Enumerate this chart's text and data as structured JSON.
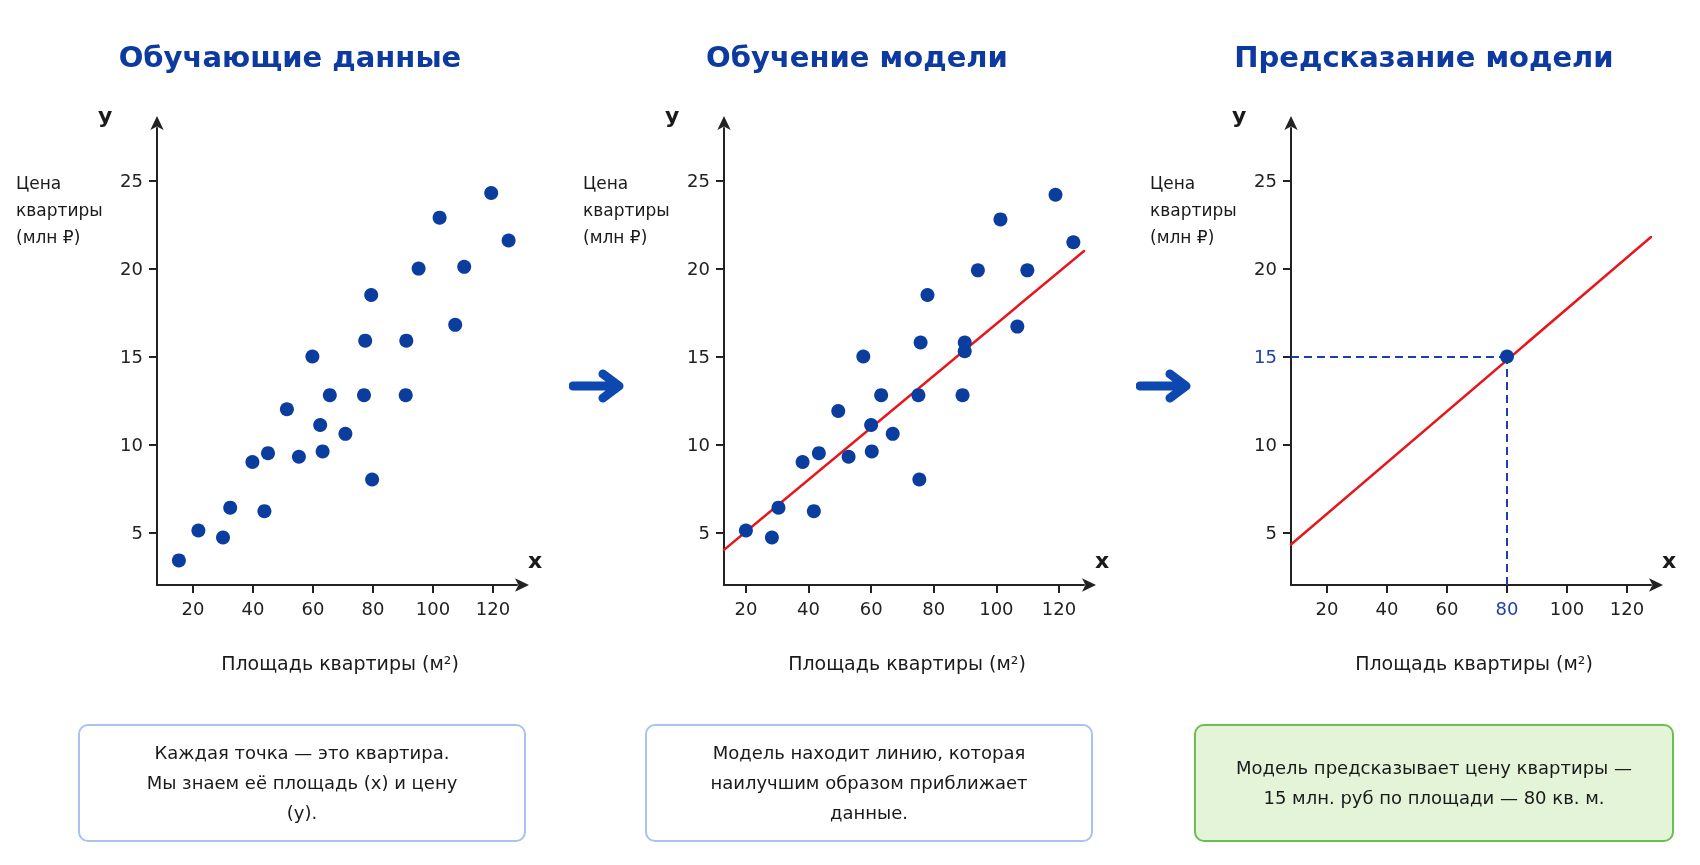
{
  "chart_data": [
    {
      "type": "scatter",
      "title": "Обучающие данные",
      "xlabel": "Площадь квартиры (м²)",
      "ylabel": "Цена квартиры (млн ₽)",
      "annotations": [
        "y",
        "x",
        "Каждая точка — это квартира.\nМы знаем её площадь (x) и цену (y)."
      ],
      "xlim": [
        8,
        128
      ],
      "ylim": [
        2,
        28
      ],
      "xticks": [
        20,
        40,
        60,
        80,
        100,
        120
      ],
      "yticks": [
        5,
        10,
        15,
        20,
        25
      ],
      "grid": false,
      "marker": "circle",
      "series": [
        {
          "color": "#0b3d9e",
          "x": [
            15.3,
            21.8,
            30,
            32.4,
            39.8,
            43.8,
            45,
            51.3,
            55.3,
            59.8,
            62.4,
            63.2,
            65.6,
            70.8,
            77,
            77.4,
            79.4,
            79.7,
            90.9,
            91.1,
            95.2,
            102.2,
            107.4,
            110.4,
            119.4,
            125.2
          ],
          "values": [
            3.4,
            5.1,
            4.7,
            6.4,
            9.0,
            6.2,
            9.5,
            12.0,
            9.3,
            15.0,
            11.1,
            9.6,
            12.8,
            10.6,
            12.8,
            15.9,
            18.5,
            8.0,
            12.8,
            15.9,
            20.0,
            22.9,
            16.8,
            20.1,
            24.3,
            21.6
          ]
        }
      ]
    },
    {
      "type": "scatter",
      "title": "Обучение модели",
      "xlabel": "Площадь квартиры (м²)",
      "ylabel": "Цена квартиры (млн ₽)",
      "annotations": [
        "y",
        "x",
        "Модель находит линию, которая наилучшим образом приближает данные."
      ],
      "xlim": [
        13,
        128
      ],
      "ylim": [
        2,
        28
      ],
      "xticks": [
        20,
        40,
        60,
        80,
        100,
        120
      ],
      "yticks": [
        5,
        10,
        15,
        20,
        25
      ],
      "grid": false,
      "marker": "circle",
      "series": [
        {
          "color": "#0b3d9e",
          "x": [
            20,
            28.3,
            30.4,
            38.1,
            41.7,
            43.3,
            49.5,
            52.8,
            57.5,
            60,
            60.2,
            63.2,
            66.9,
            75.1,
            75.8,
            78,
            75.4,
            89.2,
            89.9,
            89.9,
            94.1,
            101.3,
            106.7,
            109.9,
            118.9,
            124.6
          ],
          "values": [
            5.1,
            4.7,
            6.4,
            9.0,
            6.2,
            9.5,
            11.9,
            9.3,
            15.0,
            11.1,
            9.6,
            12.8,
            10.6,
            12.8,
            15.8,
            18.5,
            8.0,
            12.8,
            15.8,
            15.3,
            19.9,
            22.8,
            16.7,
            19.9,
            24.2,
            21.5
          ]
        },
        {
          "type": "line",
          "marker": "none",
          "color": "#e8161b",
          "x": [
            13,
            128
          ],
          "values": [
            4.0,
            21.0
          ]
        }
      ]
    },
    {
      "type": "scatter",
      "title": "Предсказание модели",
      "xlabel": "Площадь квартиры (м²)",
      "ylabel": "Цена квартиры (млн ₽)",
      "annotations": [
        "y",
        "x",
        "Модель предсказывает цену квартиры —\n15 млн. руб по площади — 80 кв. м."
      ],
      "xlim": [
        8,
        128
      ],
      "ylim": [
        2,
        28
      ],
      "xticks": [
        20,
        40,
        60,
        80,
        100,
        120
      ],
      "yticks": [
        5,
        10,
        15,
        20,
        25
      ],
      "grid": false,
      "marker": "circle",
      "ref_lines": [
        {
          "axis": "y",
          "value": 15,
          "color": "#1d3fae",
          "line_style": "dashed"
        },
        {
          "axis": "x",
          "value": 80,
          "color": "#1d3fae",
          "line_style": "dashed"
        }
      ],
      "series": [
        {
          "type": "line",
          "marker": "none",
          "color": "#e8161b",
          "x": [
            8,
            128
          ],
          "values": [
            4.3,
            21.8
          ]
        },
        {
          "color": "#0b3d9e",
          "x": [
            80
          ],
          "values": [
            15
          ]
        }
      ]
    }
  ]
}
